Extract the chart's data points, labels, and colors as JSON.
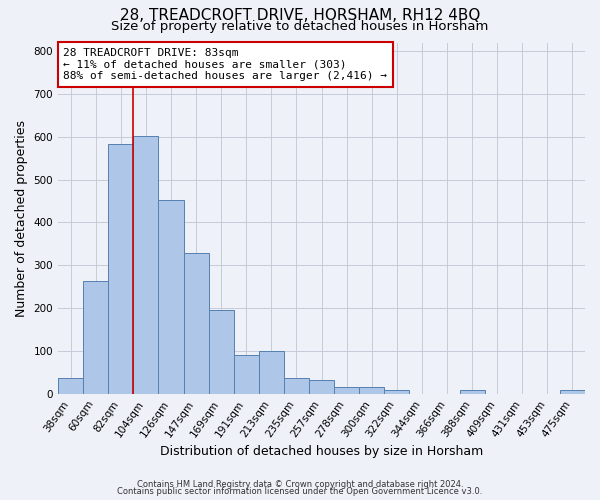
{
  "title": "28, TREADCROFT DRIVE, HORSHAM, RH12 4BQ",
  "subtitle": "Size of property relative to detached houses in Horsham",
  "xlabel": "Distribution of detached houses by size in Horsham",
  "ylabel": "Number of detached properties",
  "bar_labels": [
    "38sqm",
    "60sqm",
    "82sqm",
    "104sqm",
    "126sqm",
    "147sqm",
    "169sqm",
    "191sqm",
    "213sqm",
    "235sqm",
    "257sqm",
    "278sqm",
    "300sqm",
    "322sqm",
    "344sqm",
    "366sqm",
    "388sqm",
    "409sqm",
    "431sqm",
    "453sqm",
    "475sqm"
  ],
  "bar_values": [
    38,
    263,
    583,
    602,
    453,
    328,
    196,
    90,
    101,
    38,
    32,
    15,
    15,
    10,
    0,
    0,
    10,
    0,
    0,
    0,
    8
  ],
  "bar_color": "#aec6e8",
  "bar_edge_color": "#5580b0",
  "vline_index": 2,
  "vline_color": "#cc0000",
  "ylim": [
    0,
    820
  ],
  "yticks": [
    0,
    100,
    200,
    300,
    400,
    500,
    600,
    700,
    800
  ],
  "annotation_title": "28 TREADCROFT DRIVE: 83sqm",
  "annotation_line1": "← 11% of detached houses are smaller (303)",
  "annotation_line2": "88% of semi-detached houses are larger (2,416) →",
  "annotation_box_color": "#ffffff",
  "annotation_box_edge": "#cc0000",
  "footnote1": "Contains HM Land Registry data © Crown copyright and database right 2024.",
  "footnote2": "Contains public sector information licensed under the Open Government Licence v3.0.",
  "background_color": "#eef1f8",
  "grid_color": "#c5ccd8",
  "title_fontsize": 11,
  "subtitle_fontsize": 9.5,
  "xlabel_fontsize": 9,
  "ylabel_fontsize": 9,
  "tick_fontsize": 7.5,
  "annotation_fontsize": 8,
  "footnote_fontsize": 6
}
